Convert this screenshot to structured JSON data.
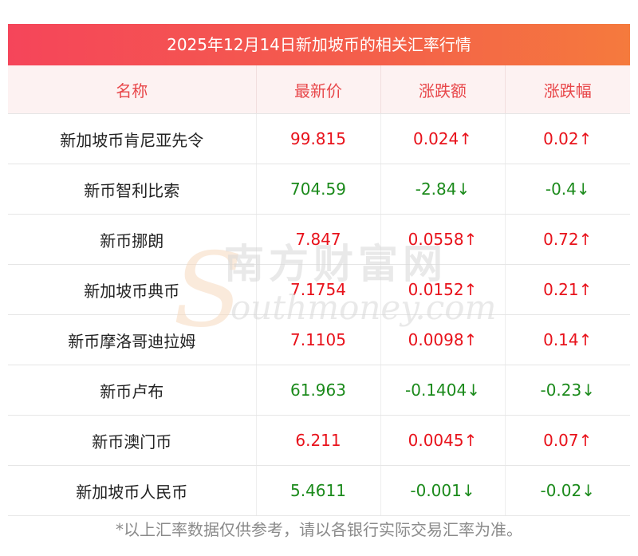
{
  "title": "2025年12月14日新加坡币的相关汇率行情",
  "headers": [
    "名称",
    "最新价",
    "涨跌额",
    "涨跌幅"
  ],
  "rows": [
    {
      "name": "新加坡币肯尼亚先令",
      "price": "99.815",
      "change": "0.024↑",
      "pct": "0.02↑",
      "dir": "up"
    },
    {
      "name": "新币智利比索",
      "price": "704.59",
      "change": "-2.84↓",
      "pct": "-0.4↓",
      "dir": "down"
    },
    {
      "name": "新币挪朗",
      "price": "7.847",
      "change": "0.0558↑",
      "pct": "0.72↑",
      "dir": "up"
    },
    {
      "name": "新加坡币典币",
      "price": "7.1754",
      "change": "0.0152↑",
      "pct": "0.21↑",
      "dir": "up"
    },
    {
      "name": "新币摩洛哥迪拉姆",
      "price": "7.1105",
      "change": "0.0098↑",
      "pct": "0.14↑",
      "dir": "up"
    },
    {
      "name": "新币卢布",
      "price": "61.963",
      "change": "-0.1404↓",
      "pct": "-0.23↓",
      "dir": "down"
    },
    {
      "name": "新币澳门币",
      "price": "6.211",
      "change": "0.0045↑",
      "pct": "0.07↑",
      "dir": "up"
    },
    {
      "name": "新加坡币人民币",
      "price": "5.4611",
      "change": "-0.001↓",
      "pct": "-0.02↓",
      "dir": "down"
    }
  ],
  "watermark": {
    "cn": "南方财富网",
    "en": "outhmoney.com"
  },
  "footnote": "*以上汇率数据仅供参考，请以各银行实际交易汇率为准。",
  "colors": {
    "up": "#e8121b",
    "down": "#1b8a1b",
    "header_text": "#e8474a"
  }
}
